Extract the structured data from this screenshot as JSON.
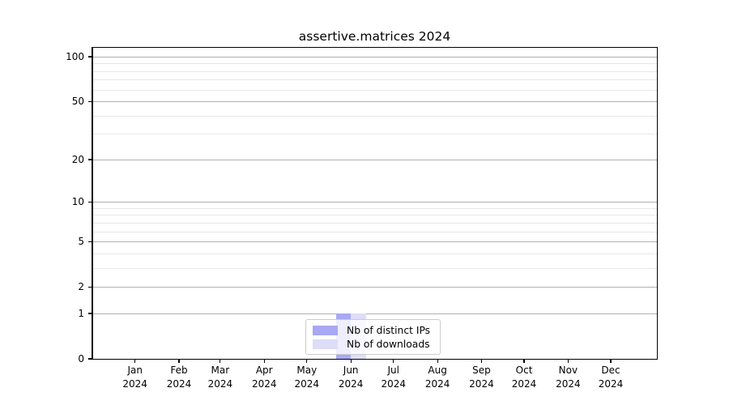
{
  "figure": {
    "title": "assertive.matrices 2024",
    "background": "#ffffff"
  },
  "chart_data": {
    "type": "bar",
    "title": "assertive.matrices 2024",
    "x_months": [
      "Jan",
      "Feb",
      "Mar",
      "Apr",
      "May",
      "Jun",
      "Jul",
      "Aug",
      "Sep",
      "Oct",
      "Nov",
      "Dec"
    ],
    "x_year": "2024",
    "series": [
      {
        "name": "Nb of distinct IPs",
        "color": "#a8a8f4",
        "values": [
          0,
          0,
          0,
          0,
          0,
          1,
          0,
          0,
          0,
          0,
          0,
          0
        ]
      },
      {
        "name": "Nb of downloads",
        "color": "#ddddf7",
        "values": [
          0,
          0,
          0,
          0,
          0,
          1,
          0,
          0,
          0,
          0,
          0,
          0
        ]
      }
    ],
    "y_scale": "log1p",
    "y_axis": {
      "major_ticks": [
        0,
        1,
        2,
        5,
        10,
        20,
        50,
        100
      ],
      "minor_ticks": [
        3,
        4,
        6,
        7,
        8,
        9,
        30,
        40,
        60,
        70,
        80,
        90
      ],
      "range_top": 115
    },
    "grid": {
      "major_color": "#b0b0b0",
      "minor_color": "#e7e7e7"
    },
    "legend_position": "lower center"
  }
}
